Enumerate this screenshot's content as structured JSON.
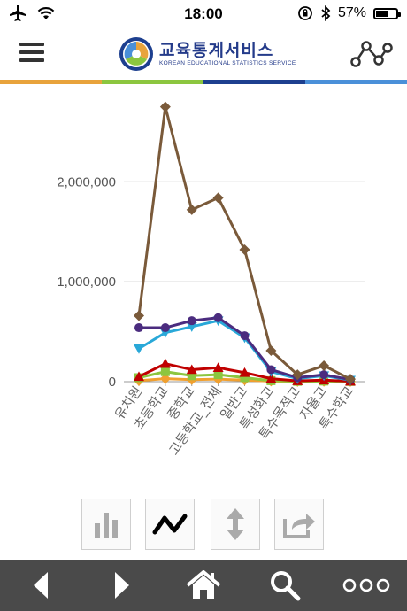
{
  "status": {
    "time": "18:00",
    "battery": "57%",
    "battery_level": 0.57
  },
  "header": {
    "logo_title": "교육통계서비스",
    "logo_subtitle": "KOREAN EDUCATIONAL STATISTICS SERVICE"
  },
  "colors": {
    "stripe": [
      "#e8a33c",
      "#8cc63f",
      "#1d3f8f",
      "#4a90d9"
    ],
    "nav_bg": "#4a4a4a"
  },
  "icons": {
    "menu": "hamburger-icon",
    "share": "network-share-icon",
    "bar": "bar-chart-icon",
    "line": "line-chart-icon",
    "sort": "sort-arrows-icon",
    "export": "export-icon",
    "back": "back-icon",
    "forward": "forward-icon",
    "home": "home-icon",
    "search": "search-icon",
    "more": "more-icon"
  },
  "chart_data": {
    "type": "line",
    "categories": [
      "유치원",
      "초등학교",
      "중학교",
      "고등학교_전체",
      "일반고",
      "특성화고",
      "특수목적고",
      "자율고",
      "특수학교"
    ],
    "ylim": [
      0,
      2800000
    ],
    "yticks": [
      "0",
      "1,000,000",
      "2,000,000"
    ],
    "ytick_values": [
      0,
      1000000,
      2000000
    ],
    "grid": true,
    "series": [
      {
        "color": "#7a5a3a",
        "marker": "diamond",
        "values": [
          660000,
          2750000,
          1720000,
          1840000,
          1320000,
          310000,
          70000,
          160000,
          25000
        ]
      },
      {
        "color": "#4b2c7f",
        "marker": "circle",
        "values": [
          540000,
          540000,
          610000,
          640000,
          460000,
          120000,
          40000,
          70000,
          20000
        ]
      },
      {
        "color": "#29a8d8",
        "marker": "triangle-down",
        "values": [
          330000,
          490000,
          550000,
          610000,
          440000,
          100000,
          30000,
          60000,
          15000
        ]
      },
      {
        "color": "#c00000",
        "marker": "triangle-up",
        "values": [
          50000,
          180000,
          120000,
          140000,
          90000,
          30000,
          8000,
          15000,
          4000
        ]
      },
      {
        "color": "#8cc63f",
        "marker": "square",
        "values": [
          40000,
          100000,
          60000,
          70000,
          40000,
          10000,
          3000,
          6000,
          2000
        ]
      },
      {
        "color": "#f0a030",
        "marker": "diamond",
        "values": [
          10000,
          30000,
          20000,
          25000,
          15000,
          5000,
          1500,
          2000,
          800
        ]
      }
    ]
  }
}
